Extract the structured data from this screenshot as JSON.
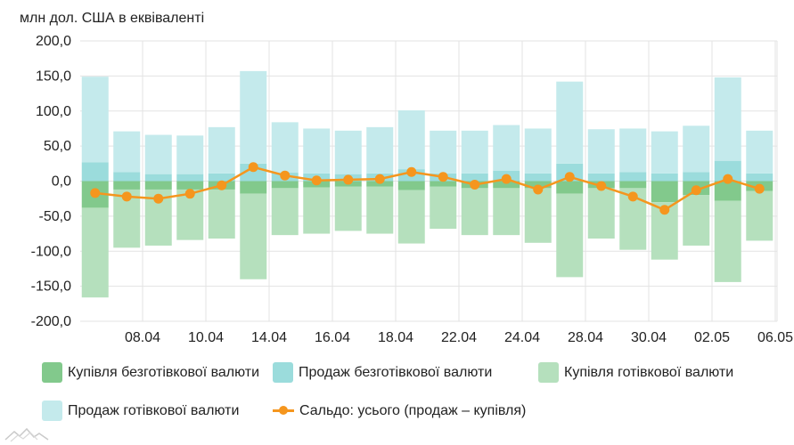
{
  "unit_title": "млн дол. США в еквіваленті",
  "colors": {
    "buy_cashless": "#82c98c",
    "sell_cashless": "#9bdcdc",
    "buy_cash": "#b5e0bd",
    "sell_cash": "#c4eaec",
    "balance": "#f5961e",
    "grid": "#e3e3e3",
    "axis_text": "#222222"
  },
  "legend": {
    "buy_cashless": "Купівля безготівкової валюти",
    "sell_cashless": "Продаж безготівкової валюти",
    "buy_cash": "Купівля готівкової валюти",
    "sell_cash": "Продаж готівкової валюти",
    "balance": "Сальдо: усього (продаж – купівля)"
  },
  "chart_data": {
    "type": "bar",
    "stacked": true,
    "ylim": [
      -200,
      200
    ],
    "y_ticks": [
      "-200,0",
      "-150,0",
      "-100,0",
      "-50,0",
      "0,0",
      "50,0",
      "100,0",
      "150,0",
      "200,0"
    ],
    "x_tick_labels": [
      "08.04",
      "10.04",
      "14.04",
      "16.04",
      "18.04",
      "22.04",
      "24.04",
      "28.04",
      "30.04",
      "02.05",
      "06.05"
    ],
    "x_tick_indices": [
      1,
      3,
      5,
      7,
      9,
      11,
      13,
      15,
      17,
      19,
      21
    ],
    "grid": true,
    "legend_position": "bottom",
    "categories_count": 22,
    "series": [
      {
        "name": "Купівля безготівкової валюти",
        "key": "buy_cashless",
        "values": [
          -38,
          -12,
          -12,
          -12,
          -12,
          -18,
          -10,
          -9,
          -8,
          -8,
          -13,
          -8,
          -10,
          -10,
          -10,
          -18,
          -10,
          -10,
          -30,
          -20,
          -28,
          -14
        ]
      },
      {
        "name": "Продаж безготівкової валюти",
        "key": "sell_cashless",
        "values": [
          27,
          13,
          10,
          10,
          11,
          25,
          12,
          11,
          10,
          11,
          17,
          11,
          11,
          15,
          11,
          25,
          11,
          13,
          11,
          13,
          29,
          11
        ]
      },
      {
        "name": "Купівля готівкової валюти",
        "key": "buy_cash",
        "values": [
          -128,
          -83,
          -80,
          -72,
          -70,
          -122,
          -67,
          -66,
          -63,
          -67,
          -76,
          -60,
          -67,
          -67,
          -78,
          -119,
          -72,
          -88,
          -82,
          -72,
          -116,
          -71
        ]
      },
      {
        "name": "Продаж готівкової валюти",
        "key": "sell_cash",
        "values": [
          122,
          58,
          56,
          55,
          66,
          132,
          72,
          64,
          62,
          66,
          84,
          61,
          61,
          65,
          64,
          117,
          63,
          62,
          60,
          66,
          119,
          61
        ]
      },
      {
        "name": "Сальдо: усього (продаж – купівля)",
        "key": "balance",
        "type": "line",
        "values": [
          -17,
          -22,
          -25,
          -18,
          -6,
          20,
          8,
          1,
          2,
          3,
          13,
          6,
          -5,
          3,
          -12,
          6,
          -7,
          -22,
          -41,
          -13,
          3,
          -11
        ]
      }
    ]
  }
}
